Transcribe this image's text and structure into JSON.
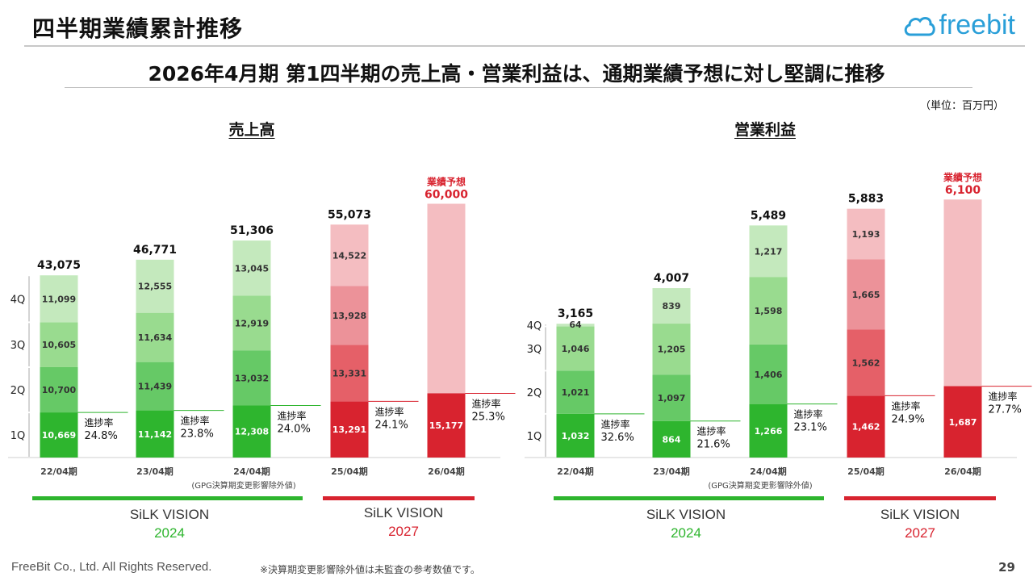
{
  "header": {
    "title": "四半期業績累計推移",
    "logo_text": "freebit",
    "subtitle": "2026年4月期 第1四半期の売上高・営業利益は、通期業績予想に対し堅調に推移",
    "unit": "（単位：百万円）"
  },
  "footer": {
    "copyright": "FreeBit Co., Ltd. All Rights Reserved.",
    "note": "※決算期変更影響除外値は未監査の参考数値です。",
    "page_number": "29"
  },
  "colors": {
    "green_q1": "#2eb52e",
    "green_q2": "#66c966",
    "green_q3": "#99db8f",
    "green_q4": "#c4e9bd",
    "red_q1": "#d8232f",
    "red_q2": "#e56068",
    "red_q3": "#ec9299",
    "red_q4": "#f4bdc1",
    "forecast_label": "#d8232f"
  },
  "panels": [
    {
      "title": "売上高",
      "plans": [
        {
          "label": "SiLK VISION",
          "year": "2024",
          "color": "#2eb52e"
        },
        {
          "label": "SiLK VISION",
          "year": "2027",
          "color": "#d8232f"
        }
      ]
    },
    {
      "title": "営業利益",
      "plans": [
        {
          "label": "SiLK VISION",
          "year": "2024",
          "color": "#2eb52e"
        },
        {
          "label": "SiLK VISION",
          "year": "2027",
          "color": "#d8232f"
        }
      ]
    }
  ],
  "chart_data": [
    {
      "type": "bar",
      "stacked": true,
      "title": "売上高",
      "categories": [
        "22/04期",
        "23/04期",
        "24/04期",
        "25/04期",
        "26/04期"
      ],
      "series": [
        {
          "name": "1Q",
          "values": [
            10669,
            11142,
            12308,
            13291,
            15177
          ]
        },
        {
          "name": "2Q",
          "values": [
            10700,
            11439,
            13032,
            13331,
            null
          ]
        },
        {
          "name": "3Q",
          "values": [
            10605,
            11634,
            12919,
            13928,
            null
          ]
        },
        {
          "name": "4Q",
          "values": [
            11099,
            12555,
            13045,
            14522,
            null
          ]
        }
      ],
      "value_labels": [
        [
          "10,669",
          "10,700",
          "10,605",
          "11,099"
        ],
        [
          "11,142",
          "11,439",
          "11,634",
          "12,555"
        ],
        [
          "12,308",
          "13,032",
          "12,919",
          "13,045"
        ],
        [
          "13,291",
          "13,331",
          "13,928",
          "14,522"
        ],
        [
          "15,177"
        ]
      ],
      "totals": [
        43075,
        46771,
        51306,
        55073,
        null
      ],
      "total_labels": [
        "43,075",
        "46,771",
        "51,306",
        "55,073",
        ""
      ],
      "forecast": {
        "label": "業績予想",
        "value": 60000,
        "value_label": "60,000"
      },
      "progress_label": "進捗率",
      "progress_rates": [
        "24.8%",
        "23.8%",
        "24.0%",
        "24.1%",
        "25.3%"
      ],
      "quarter_labels": [
        "1Q",
        "2Q",
        "3Q",
        "4Q"
      ],
      "note": "(GPG決算期変更影響除外値)",
      "ylim": [
        0,
        62000
      ]
    },
    {
      "type": "bar",
      "stacked": true,
      "title": "営業利益",
      "categories": [
        "22/04期",
        "23/04期",
        "24/04期",
        "25/04期",
        "26/04期"
      ],
      "series": [
        {
          "name": "1Q",
          "values": [
            1032,
            864,
            1266,
            1462,
            1687
          ]
        },
        {
          "name": "2Q",
          "values": [
            1021,
            1097,
            1406,
            1562,
            null
          ]
        },
        {
          "name": "3Q",
          "values": [
            1046,
            1205,
            1598,
            1665,
            null
          ]
        },
        {
          "name": "4Q",
          "values": [
            64,
            839,
            1217,
            1193,
            null
          ]
        }
      ],
      "value_labels": [
        [
          "1,032",
          "1,021",
          "1,046",
          "64"
        ],
        [
          "864",
          "1,097",
          "1,205",
          "839"
        ],
        [
          "1,266",
          "1,406",
          "1,598",
          "1,217"
        ],
        [
          "1,462",
          "1,562",
          "1,665",
          "1,193"
        ],
        [
          "1,687"
        ]
      ],
      "totals": [
        3165,
        4007,
        5489,
        5883,
        null
      ],
      "total_labels": [
        "3,165",
        "4,007",
        "5,489",
        "5,883",
        ""
      ],
      "forecast": {
        "label": "業績予想",
        "value": 6100,
        "value_label": "6,100"
      },
      "progress_label": "進捗率",
      "progress_rates": [
        "32.6%",
        "21.6%",
        "23.1%",
        "24.9%",
        "27.7%"
      ],
      "quarter_labels": [
        "1Q",
        "2Q",
        "3Q",
        "4Q"
      ],
      "note": "(GPG決算期変更影響除外値)",
      "ylim": [
        0,
        6200
      ]
    }
  ]
}
